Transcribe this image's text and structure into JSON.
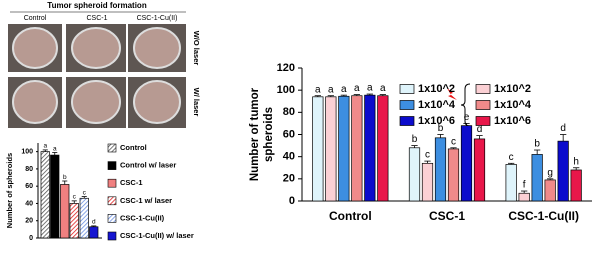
{
  "photo_panel": {
    "title": "Tumor spheroid formation",
    "columns": [
      "Control",
      "CSC-1",
      "CSC-1-Cu(II)"
    ],
    "rows": [
      "W/O laser",
      "W/ laser"
    ]
  },
  "chart_data": [
    {
      "type": "bar",
      "ylabel": "Number of spheroids",
      "ylim": [
        0,
        110
      ],
      "yticks": [
        0,
        20,
        40,
        60,
        80,
        100
      ],
      "series": [
        {
          "name": "Control",
          "color": "#555555",
          "hatch": true,
          "values": [
            100
          ],
          "errors": [
            2
          ],
          "letters": [
            "a"
          ]
        },
        {
          "name": "Control w/ laser",
          "color": "#000000",
          "hatch": false,
          "values": [
            96
          ],
          "errors": [
            3
          ],
          "letters": [
            "a"
          ]
        },
        {
          "name": "CSC-1",
          "color": "#f08080",
          "hatch": false,
          "values": [
            62
          ],
          "errors": [
            4
          ],
          "letters": [
            "b"
          ]
        },
        {
          "name": "CSC-1 w/ laser",
          "color": "#e02020",
          "hatch": true,
          "values": [
            40
          ],
          "errors": [
            3
          ],
          "letters": [
            "c"
          ]
        },
        {
          "name": "CSC-1-Cu(II)",
          "color": "#6a8fe0",
          "hatch": true,
          "values": [
            46
          ],
          "errors": [
            2
          ],
          "letters": [
            "c"
          ]
        },
        {
          "name": "CSC-1-Cu(II) w/ laser",
          "color": "#1515d0",
          "hatch": false,
          "values": [
            13
          ],
          "errors": [
            1
          ],
          "letters": [
            "d"
          ]
        }
      ]
    },
    {
      "type": "bar",
      "ylabel": [
        "Number of tumor",
        "spheroids"
      ],
      "categories": [
        "Control",
        "CSC-1",
        "CSC-1-Cu(II)"
      ],
      "ylim": [
        0,
        120
      ],
      "yticks": [
        0,
        20,
        40,
        60,
        80,
        100,
        120
      ],
      "series": [
        {
          "name": "1x10^2",
          "color": "#dff4fb",
          "values": [
            94,
            48,
            33
          ],
          "errors": [
            1,
            2,
            1
          ],
          "letters": [
            "a",
            "b",
            "c"
          ]
        },
        {
          "name": "1x10^2",
          "color": "#fbd0d4",
          "values": [
            94,
            34,
            7
          ],
          "errors": [
            1,
            2,
            2
          ],
          "letters": [
            "a",
            "c",
            "f"
          ]
        },
        {
          "name": "1x10^4",
          "color": "#3d8ee0",
          "values": [
            94.5,
            57,
            42
          ],
          "errors": [
            1,
            3,
            4
          ],
          "letters": [
            "a",
            "b",
            "b"
          ]
        },
        {
          "name": "1x10^4",
          "color": "#f08a8a",
          "values": [
            95,
            47,
            19
          ],
          "errors": [
            1,
            1,
            1
          ],
          "letters": [
            "a",
            "c",
            "g"
          ]
        },
        {
          "name": "1x10^6",
          "color": "#0c0ccc",
          "values": [
            95.5,
            68,
            54
          ],
          "errors": [
            1,
            2,
            6
          ],
          "letters": [
            "a",
            "e",
            "d"
          ]
        },
        {
          "name": "1x10^6",
          "color": "#e8174a",
          "values": [
            95,
            56,
            28
          ],
          "errors": [
            1,
            3,
            2
          ],
          "letters": [
            "a",
            "d",
            "h"
          ]
        }
      ]
    }
  ]
}
